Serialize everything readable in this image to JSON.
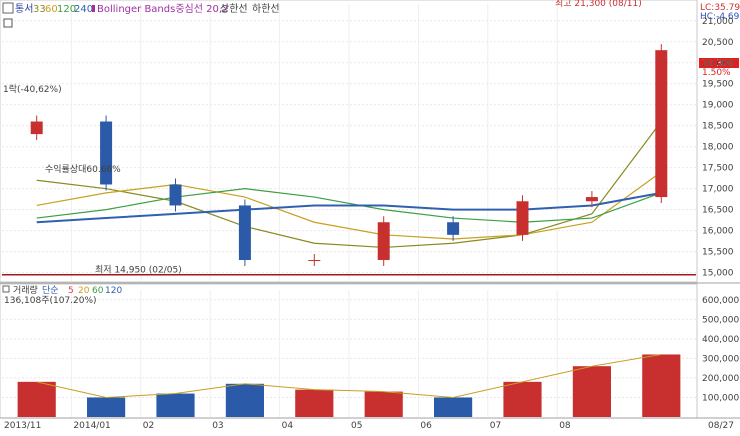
{
  "price_panel": {
    "legend": {
      "label": "통서",
      "ma_values": [
        "33",
        "60",
        "120",
        "240"
      ],
      "ma_colors": [
        "#8a8a20",
        "#c8a020",
        "#3aa040",
        "#3060b0"
      ],
      "bollinger": "Bollinger Bands중심선 20,2",
      "upper": "상한선",
      "lower": "하한선"
    },
    "indicators": {
      "lc": "LC:35.79",
      "hc": "HC:-4.69"
    },
    "current_price_label": "20,300",
    "current_change_label": "1.50%",
    "annotations": {
      "high": "최고 21,300 (08/11)",
      "low": "최저 14,950 (02/05)",
      "drawdown": "1락(-40,62%)",
      "obscured": "수익률상대60.66%"
    },
    "y_ticks": [
      "21,000",
      "20,500",
      "20,000",
      "19,500",
      "19,000",
      "18,500",
      "18,000",
      "17,500",
      "17,000",
      "16,500",
      "16,000",
      "15,500",
      "15,000"
    ]
  },
  "volume_panel": {
    "legend": {
      "label": "거래량",
      "type": "단순",
      "ma_values": [
        "5",
        "20",
        "60",
        "120"
      ],
      "ma_colors": [
        "#e04040",
        "#c8a020",
        "#3aa040",
        "#3060b0"
      ]
    },
    "volume_text": "136,108주(107.20%)",
    "y_ticks": [
      "600,000",
      "500,000",
      "400,000",
      "300,000",
      "200,000",
      "100,000"
    ]
  },
  "x_axis": {
    "labels": [
      "2013/11",
      "2014/01",
      "02",
      "03",
      "04",
      "05",
      "06",
      "07",
      "08",
      "08/27"
    ]
  },
  "chart_data": [
    {
      "type": "candlestick",
      "title": "",
      "ylim": [
        14800,
        21400
      ],
      "x": [
        "2013/11",
        "2013/12",
        "2014/01",
        "02",
        "03",
        "04",
        "05",
        "06",
        "07",
        "08"
      ],
      "series": [
        {
          "name": "33",
          "values": [
            17200,
            17000,
            16700,
            16100,
            15700,
            15600,
            15700,
            15900,
            16400,
            18600
          ]
        },
        {
          "name": "60",
          "values": [
            16600,
            16900,
            17100,
            16800,
            16200,
            15900,
            15800,
            15900,
            16200,
            17400
          ]
        },
        {
          "name": "120",
          "values": [
            16300,
            16500,
            16800,
            17000,
            16800,
            16500,
            16300,
            16200,
            16300,
            16900
          ]
        },
        {
          "name": "240",
          "values": [
            16200,
            16300,
            16400,
            16500,
            16600,
            16600,
            16500,
            16500,
            16600,
            16900
          ]
        }
      ],
      "close": [
        18600,
        17100,
        16600,
        15300,
        15300,
        16200,
        15900,
        16700,
        16800,
        20300
      ],
      "annotations": [
        {
          "text": "최고 21,300 (08/11)",
          "value": 21300
        },
        {
          "text": "최저 14,950 (02/05)",
          "value": 14950
        }
      ]
    },
    {
      "type": "bar",
      "title": "",
      "ylim": [
        0,
        650000
      ],
      "categories": [
        "2013/11",
        "2013/12",
        "2014/01",
        "02",
        "03",
        "04",
        "05",
        "06",
        "07",
        "08"
      ],
      "values": [
        180000,
        100000,
        120000,
        170000,
        140000,
        130000,
        100000,
        180000,
        260000,
        320000
      ]
    }
  ]
}
